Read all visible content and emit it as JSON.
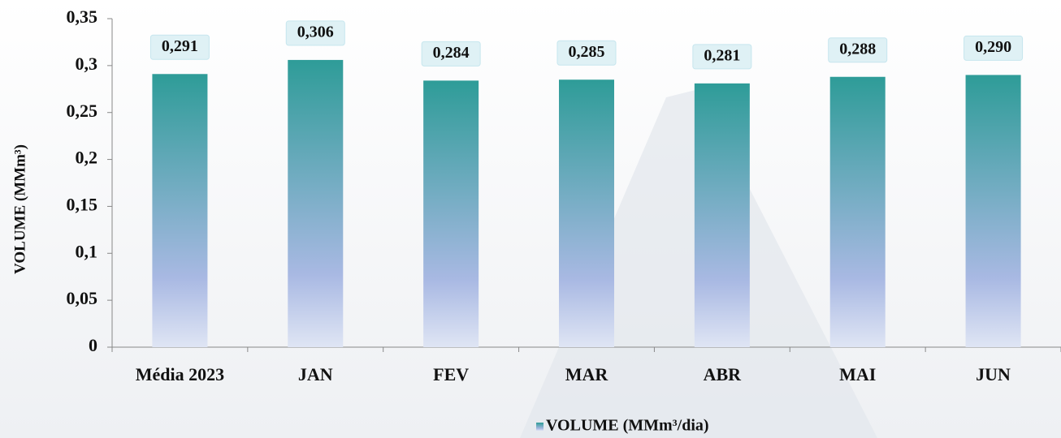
{
  "chart_data": {
    "type": "bar",
    "y_label": "VOLUME (MMm³)",
    "categories": [
      "Média 2023",
      "JAN",
      "FEV",
      "MAR",
      "ABR",
      "MAI",
      "JUN"
    ],
    "series": [
      {
        "name": "VOLUME (MMm³/dia)",
        "color": "#2e9c98",
        "values": [
          0.291,
          0.306,
          0.284,
          0.285,
          0.281,
          0.288,
          0.29
        ],
        "value_labels": [
          "0,291",
          "0,306",
          "0,284",
          "0,285",
          "0,281",
          "0,288",
          "0,290"
        ]
      }
    ],
    "ylim": [
      0,
      0.35
    ],
    "yticks": [
      0,
      {
        "value": 0.05,
        "label": "0,05"
      },
      {
        "value": 0.1,
        "label": "0,1"
      },
      {
        "value": 0.15,
        "label": "0,15"
      },
      {
        "value": 0.2,
        "label": "0,2"
      },
      {
        "value": 0.25,
        "label": "0,25"
      },
      {
        "value": 0.3,
        "label": "0,3"
      },
      {
        "value": 0.35,
        "label": "0,35"
      }
    ],
    "grid": false,
    "legend": "bottom"
  }
}
